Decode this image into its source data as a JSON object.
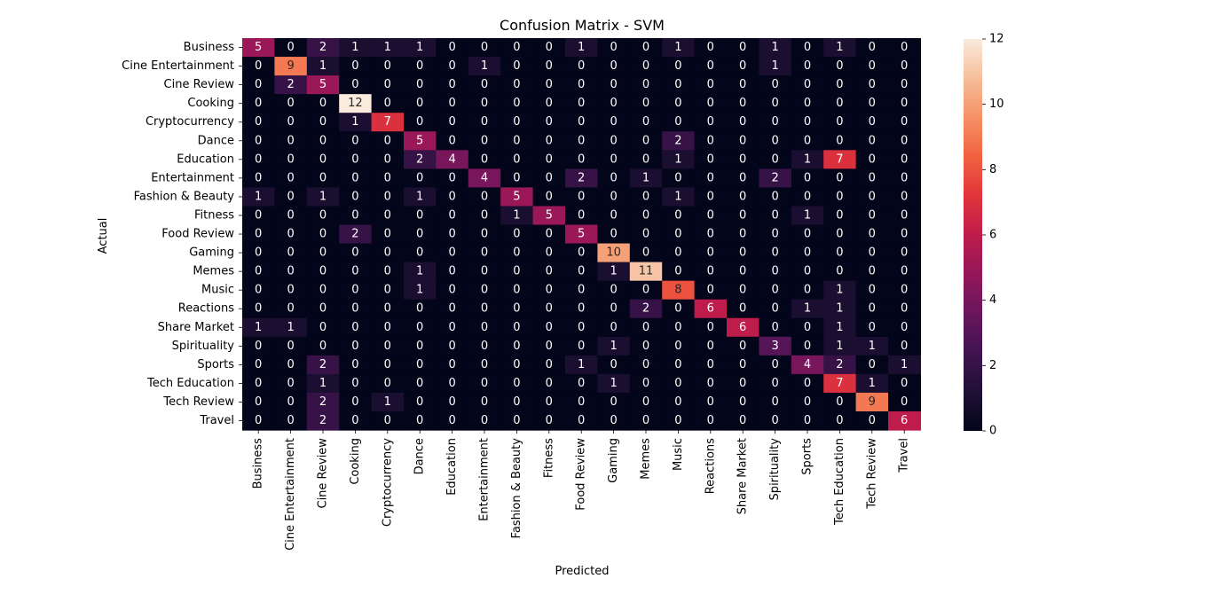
{
  "chart_data": {
    "type": "heatmap",
    "title": "Confusion Matrix - SVM",
    "xlabel": "Predicted",
    "ylabel": "Actual",
    "colormap": "rocket",
    "categories": [
      "Business",
      "Cine Entertainment",
      "Cine Review",
      "Cooking",
      "Cryptocurrency",
      "Dance",
      "Education",
      "Entertainment",
      "Fashion & Beauty",
      "Fitness",
      "Food Review",
      "Gaming",
      "Memes",
      "Music",
      "Reactions",
      "Share Market",
      "Spirituality",
      "Sports",
      "Tech Education",
      "Tech Review",
      "Travel"
    ],
    "matrix": [
      [
        5,
        0,
        2,
        1,
        1,
        1,
        0,
        0,
        0,
        0,
        1,
        0,
        0,
        1,
        0,
        0,
        1,
        0,
        1,
        0,
        0
      ],
      [
        0,
        9,
        1,
        0,
        0,
        0,
        0,
        1,
        0,
        0,
        0,
        0,
        0,
        0,
        0,
        0,
        1,
        0,
        0,
        0,
        0
      ],
      [
        0,
        2,
        5,
        0,
        0,
        0,
        0,
        0,
        0,
        0,
        0,
        0,
        0,
        0,
        0,
        0,
        0,
        0,
        0,
        0,
        0
      ],
      [
        0,
        0,
        0,
        12,
        0,
        0,
        0,
        0,
        0,
        0,
        0,
        0,
        0,
        0,
        0,
        0,
        0,
        0,
        0,
        0,
        0
      ],
      [
        0,
        0,
        0,
        1,
        7,
        0,
        0,
        0,
        0,
        0,
        0,
        0,
        0,
        0,
        0,
        0,
        0,
        0,
        0,
        0,
        0
      ],
      [
        0,
        0,
        0,
        0,
        0,
        5,
        0,
        0,
        0,
        0,
        0,
        0,
        0,
        2,
        0,
        0,
        0,
        0,
        0,
        0,
        0
      ],
      [
        0,
        0,
        0,
        0,
        0,
        2,
        4,
        0,
        0,
        0,
        0,
        0,
        0,
        1,
        0,
        0,
        0,
        1,
        7,
        0,
        0
      ],
      [
        0,
        0,
        0,
        0,
        0,
        0,
        0,
        4,
        0,
        0,
        2,
        0,
        1,
        0,
        0,
        0,
        2,
        0,
        0,
        0,
        0
      ],
      [
        1,
        0,
        1,
        0,
        0,
        1,
        0,
        0,
        5,
        0,
        0,
        0,
        0,
        1,
        0,
        0,
        0,
        0,
        0,
        0,
        0
      ],
      [
        0,
        0,
        0,
        0,
        0,
        0,
        0,
        0,
        1,
        5,
        0,
        0,
        0,
        0,
        0,
        0,
        0,
        1,
        0,
        0,
        0
      ],
      [
        0,
        0,
        0,
        2,
        0,
        0,
        0,
        0,
        0,
        0,
        5,
        0,
        0,
        0,
        0,
        0,
        0,
        0,
        0,
        0,
        0
      ],
      [
        0,
        0,
        0,
        0,
        0,
        0,
        0,
        0,
        0,
        0,
        0,
        10,
        0,
        0,
        0,
        0,
        0,
        0,
        0,
        0,
        0
      ],
      [
        0,
        0,
        0,
        0,
        0,
        1,
        0,
        0,
        0,
        0,
        0,
        1,
        11,
        0,
        0,
        0,
        0,
        0,
        0,
        0,
        0
      ],
      [
        0,
        0,
        0,
        0,
        0,
        1,
        0,
        0,
        0,
        0,
        0,
        0,
        0,
        8,
        0,
        0,
        0,
        0,
        1,
        0,
        0
      ],
      [
        0,
        0,
        0,
        0,
        0,
        0,
        0,
        0,
        0,
        0,
        0,
        0,
        2,
        0,
        6,
        0,
        0,
        1,
        1,
        0,
        0
      ],
      [
        1,
        1,
        0,
        0,
        0,
        0,
        0,
        0,
        0,
        0,
        0,
        0,
        0,
        0,
        0,
        6,
        0,
        0,
        1,
        0,
        0
      ],
      [
        0,
        0,
        0,
        0,
        0,
        0,
        0,
        0,
        0,
        0,
        0,
        1,
        0,
        0,
        0,
        0,
        3,
        0,
        1,
        1,
        0
      ],
      [
        0,
        0,
        2,
        0,
        0,
        0,
        0,
        0,
        0,
        0,
        1,
        0,
        0,
        0,
        0,
        0,
        0,
        4,
        2,
        0,
        1
      ],
      [
        0,
        0,
        1,
        0,
        0,
        0,
        0,
        0,
        0,
        0,
        0,
        1,
        0,
        0,
        0,
        0,
        0,
        0,
        7,
        1,
        0
      ],
      [
        0,
        0,
        2,
        0,
        1,
        0,
        0,
        0,
        0,
        0,
        0,
        0,
        0,
        0,
        0,
        0,
        0,
        0,
        0,
        9,
        0
      ],
      [
        0,
        0,
        2,
        0,
        0,
        0,
        0,
        0,
        0,
        0,
        0,
        0,
        0,
        0,
        0,
        0,
        0,
        0,
        0,
        0,
        6
      ]
    ],
    "vmin": 0,
    "vmax": 12,
    "colorbar_ticks": [
      "0",
      "2",
      "4",
      "6",
      "8",
      "10",
      "12"
    ]
  }
}
